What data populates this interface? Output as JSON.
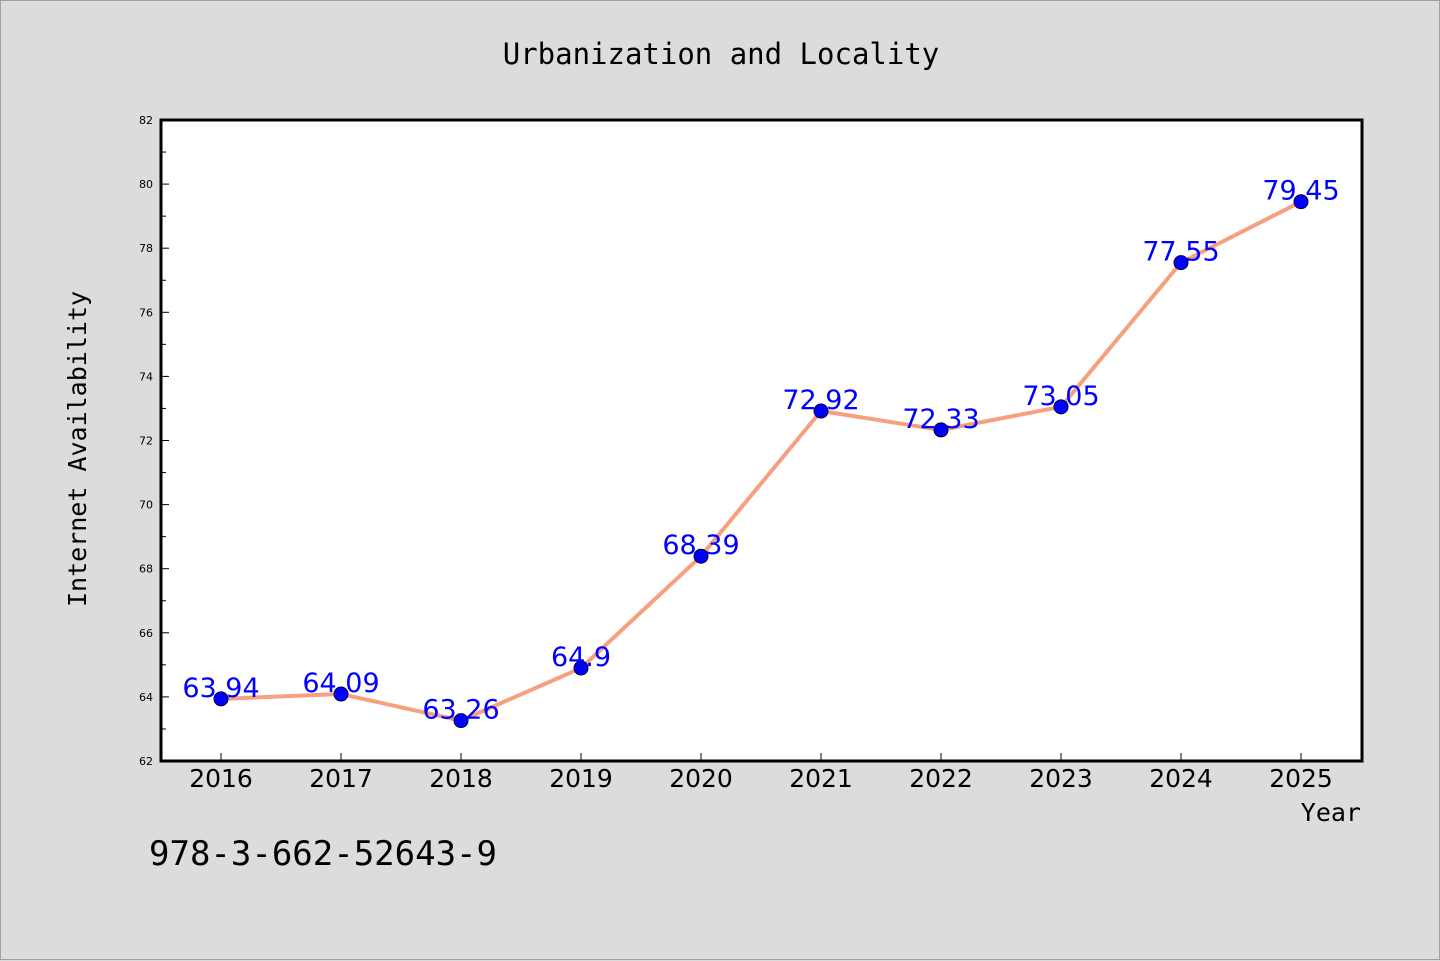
{
  "chart_data": {
    "type": "line",
    "title": "Urbanization and Locality",
    "xlabel": "Year",
    "ylabel": "Internet Availability",
    "categories": [
      "2016",
      "2017",
      "2018",
      "2019",
      "2020",
      "2021",
      "2022",
      "2023",
      "2024",
      "2025"
    ],
    "series": [
      {
        "values": [
          63.94,
          64.09,
          63.26,
          64.9,
          68.39,
          72.92,
          72.33,
          73.05,
          77.55,
          79.45
        ],
        "labels": [
          "63.94",
          "64.09",
          "63.26",
          "64.9",
          "68.39",
          "72.92",
          "72.33",
          "73.05",
          "77.55",
          "79.45"
        ],
        "line_color": "#f7a07f",
        "marker_color": "#0000ff"
      }
    ],
    "ylim": [
      62,
      82
    ],
    "yticks": [
      "62",
      "64",
      "66",
      "68",
      "70",
      "72",
      "74",
      "76",
      "78",
      "80",
      "82"
    ],
    "grid": false,
    "legend": "none"
  },
  "footer": {
    "isbn": "978-3-662-52643-9"
  },
  "colors": {
    "background": "#dcdcdc",
    "plot_background": "#ffffff",
    "line": "#f7a07f",
    "marker": "#0000ff",
    "data_label": "#0000ff"
  }
}
